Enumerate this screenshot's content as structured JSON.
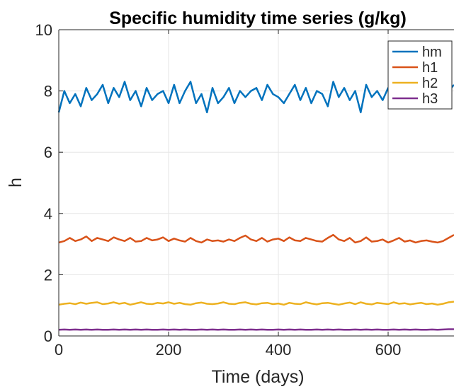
{
  "chart_data": {
    "type": "line",
    "title": "Specific humidity time series (g/kg)",
    "xlabel": "Time (days)",
    "ylabel": "h",
    "xlim": [
      0,
      720
    ],
    "ylim": [
      0,
      10
    ],
    "xticks": [
      0,
      200,
      400,
      600
    ],
    "yticks": [
      0,
      2,
      4,
      6,
      8,
      10
    ],
    "grid": true,
    "legend_position": "top-right",
    "x": [
      0,
      10,
      20,
      30,
      40,
      50,
      60,
      70,
      80,
      90,
      100,
      110,
      120,
      130,
      140,
      150,
      160,
      170,
      180,
      190,
      200,
      210,
      220,
      230,
      240,
      250,
      260,
      270,
      280,
      290,
      300,
      310,
      320,
      330,
      340,
      350,
      360,
      370,
      380,
      390,
      400,
      410,
      420,
      430,
      440,
      450,
      460,
      470,
      480,
      490,
      500,
      510,
      520,
      530,
      540,
      550,
      560,
      570,
      580,
      590,
      600,
      610,
      620,
      630,
      640,
      650,
      660,
      670,
      680,
      690,
      700,
      710,
      720
    ],
    "series": [
      {
        "name": "hm",
        "color": "#0072BD",
        "values": [
          7.3,
          8.0,
          7.6,
          7.9,
          7.5,
          8.1,
          7.7,
          7.9,
          8.2,
          7.6,
          8.1,
          7.8,
          8.3,
          7.7,
          8.0,
          7.5,
          8.1,
          7.7,
          7.9,
          8.0,
          7.6,
          8.2,
          7.6,
          8.0,
          8.3,
          7.6,
          7.9,
          7.3,
          8.1,
          7.6,
          7.8,
          8.1,
          7.6,
          8.0,
          7.8,
          8.0,
          8.1,
          7.7,
          8.2,
          7.9,
          7.8,
          7.6,
          7.9,
          8.2,
          7.7,
          8.1,
          7.6,
          8.0,
          7.9,
          7.5,
          8.3,
          7.8,
          8.1,
          7.7,
          8.0,
          7.3,
          8.2,
          7.8,
          8.0,
          7.7,
          8.1,
          7.6,
          8.0,
          8.3,
          7.7,
          8.0,
          7.6,
          8.2,
          7.8,
          8.0,
          7.7,
          8.0,
          8.2
        ]
      },
      {
        "name": "h1",
        "color": "#D95319",
        "values": [
          3.05,
          3.1,
          3.2,
          3.1,
          3.15,
          3.25,
          3.1,
          3.2,
          3.15,
          3.1,
          3.22,
          3.15,
          3.1,
          3.2,
          3.08,
          3.1,
          3.2,
          3.12,
          3.15,
          3.22,
          3.1,
          3.18,
          3.12,
          3.08,
          3.2,
          3.1,
          3.05,
          3.15,
          3.1,
          3.12,
          3.08,
          3.15,
          3.1,
          3.2,
          3.28,
          3.15,
          3.1,
          3.2,
          3.08,
          3.15,
          3.18,
          3.1,
          3.22,
          3.12,
          3.1,
          3.2,
          3.15,
          3.1,
          3.08,
          3.2,
          3.3,
          3.15,
          3.1,
          3.2,
          3.05,
          3.1,
          3.22,
          3.08,
          3.1,
          3.15,
          3.05,
          3.12,
          3.2,
          3.08,
          3.12,
          3.05,
          3.1,
          3.12,
          3.08,
          3.05,
          3.1,
          3.2,
          3.3
        ]
      },
      {
        "name": "h2",
        "color": "#EDB120",
        "values": [
          1.02,
          1.05,
          1.07,
          1.04,
          1.09,
          1.05,
          1.08,
          1.1,
          1.04,
          1.06,
          1.1,
          1.05,
          1.08,
          1.02,
          1.06,
          1.1,
          1.05,
          1.04,
          1.08,
          1.06,
          1.1,
          1.05,
          1.08,
          1.04,
          1.02,
          1.07,
          1.09,
          1.05,
          1.04,
          1.06,
          1.1,
          1.05,
          1.04,
          1.08,
          1.1,
          1.05,
          1.03,
          1.07,
          1.08,
          1.04,
          1.06,
          1.02,
          1.08,
          1.05,
          1.04,
          1.1,
          1.06,
          1.03,
          1.07,
          1.08,
          1.05,
          1.02,
          1.06,
          1.09,
          1.04,
          1.1,
          1.05,
          1.03,
          1.08,
          1.06,
          1.04,
          1.1,
          1.05,
          1.07,
          1.03,
          1.06,
          1.08,
          1.04,
          1.06,
          1.02,
          1.05,
          1.1,
          1.12
        ]
      },
      {
        "name": "h3",
        "color": "#7E2F8E",
        "values": [
          0.2,
          0.21,
          0.2,
          0.21,
          0.2,
          0.21,
          0.2,
          0.21,
          0.2,
          0.2,
          0.21,
          0.2,
          0.21,
          0.2,
          0.21,
          0.2,
          0.21,
          0.2,
          0.2,
          0.21,
          0.2,
          0.21,
          0.2,
          0.21,
          0.2,
          0.2,
          0.21,
          0.2,
          0.21,
          0.2,
          0.21,
          0.2,
          0.2,
          0.21,
          0.2,
          0.21,
          0.2,
          0.21,
          0.2,
          0.2,
          0.21,
          0.2,
          0.21,
          0.2,
          0.21,
          0.2,
          0.2,
          0.21,
          0.2,
          0.21,
          0.2,
          0.21,
          0.2,
          0.2,
          0.21,
          0.2,
          0.21,
          0.2,
          0.21,
          0.2,
          0.2,
          0.21,
          0.2,
          0.21,
          0.2,
          0.21,
          0.2,
          0.2,
          0.21,
          0.2,
          0.21,
          0.22,
          0.22
        ]
      }
    ]
  }
}
